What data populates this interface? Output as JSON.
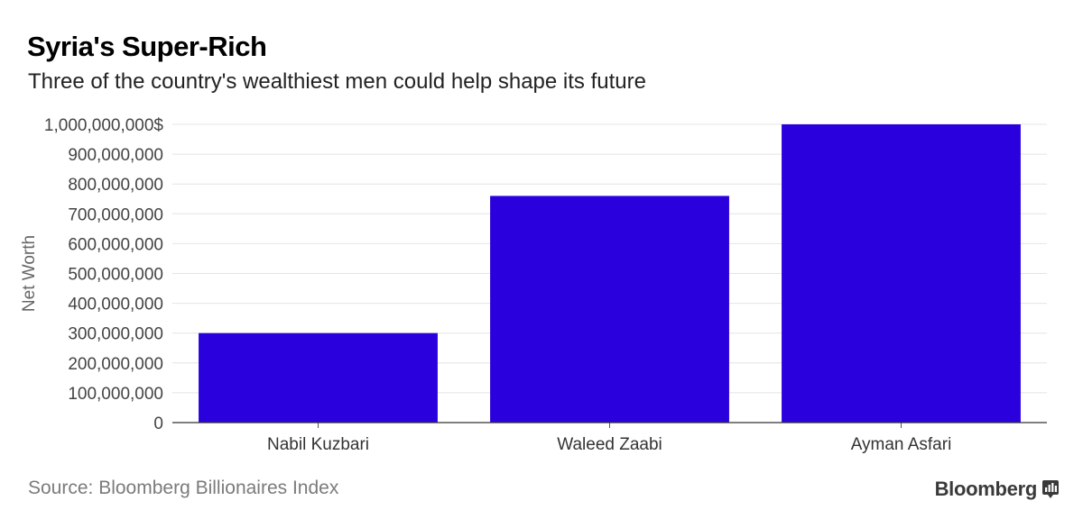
{
  "header": {
    "title": "Syria's Super-Rich",
    "subtitle": "Three of the country's wealthiest men could help shape its future"
  },
  "footer": {
    "source": "Source: Bloomberg Billionaires Index",
    "brand": "Bloomberg"
  },
  "colors": {
    "bar": "#2a00dc",
    "grid": "#e4e4e4",
    "axis_text": "#444444"
  },
  "chart_data": {
    "type": "bar",
    "title": "",
    "xlabel": "",
    "ylabel": "Net Worth",
    "categories": [
      "Nabil Kuzbari",
      "Waleed Zaabi",
      "Ayman Asfari"
    ],
    "values": [
      300000000,
      760000000,
      1000000000
    ],
    "ylim": [
      0,
      1000000000
    ],
    "yticks": [
      0,
      100000000,
      200000000,
      300000000,
      400000000,
      500000000,
      600000000,
      700000000,
      800000000,
      900000000,
      1000000000
    ],
    "ytick_labels": [
      "0",
      "100,000,000",
      "200,000,000",
      "300,000,000",
      "400,000,000",
      "500,000,000",
      "600,000,000",
      "700,000,000",
      "800,000,000",
      "900,000,000",
      "1,000,000,000$"
    ],
    "grid": true,
    "legend": "none"
  }
}
